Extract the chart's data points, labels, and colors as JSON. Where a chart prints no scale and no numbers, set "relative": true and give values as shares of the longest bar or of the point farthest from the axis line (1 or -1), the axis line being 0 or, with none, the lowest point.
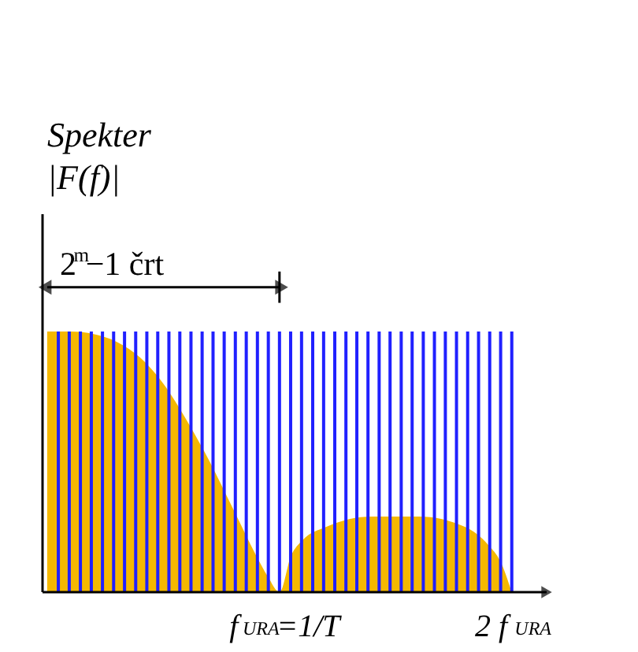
{
  "chart_data": {
    "type": "area",
    "title": "Spekter",
    "ylabel": "|F(f)|",
    "relative": true,
    "grid": false,
    "legend": false,
    "annotations": [
      "2$^{m}$−1 črt"
    ],
    "xlim": [
      -0.02,
      2.15
    ],
    "xticks": [
      {
        "value": 1,
        "label": "f$_{URA}$=1/T"
      },
      {
        "value": 2,
        "label": "2 f$_{URA}$"
      }
    ],
    "series": [
      {
        "color": "#f5b800",
        "x": [
          0,
          0.1,
          0.2,
          0.3,
          0.4,
          0.5,
          0.6,
          0.7,
          0.8,
          0.9,
          0.95,
          1.0,
          1.05,
          1.1,
          1.2,
          1.4,
          1.6,
          1.8,
          1.9,
          1.95,
          2.0
        ],
        "values": [
          1,
          1,
          0.99,
          0.96,
          0.9,
          0.8,
          0.66,
          0.5,
          0.32,
          0.14,
          0.06,
          0,
          0.14,
          0.2,
          0.25,
          0.29,
          0.29,
          0.25,
          0.18,
          0.12,
          0
        ]
      },
      {
        "type": "bar",
        "color": "#2020ff",
        "x": [
          0.048,
          0.095,
          0.143,
          0.19,
          0.238,
          0.286,
          0.333,
          0.381,
          0.429,
          0.476,
          0.524,
          0.571,
          0.619,
          0.667,
          0.714,
          0.762,
          0.81,
          0.857,
          0.905,
          0.952,
          1.0,
          1.048,
          1.095,
          1.143,
          1.19,
          1.238,
          1.286,
          1.333,
          1.381,
          1.429,
          1.476,
          1.524,
          1.571,
          1.619,
          1.667,
          1.714,
          1.762,
          1.81,
          1.857,
          1.905,
          1.952,
          2.0
        ],
        "values": [
          1,
          1,
          1,
          1,
          1,
          1,
          1,
          1,
          1,
          1,
          1,
          1,
          1,
          1,
          1,
          1,
          1,
          1,
          1,
          1,
          1,
          1,
          1,
          1,
          1,
          1,
          1,
          1,
          1,
          1,
          1,
          1,
          1,
          1,
          1,
          1,
          1,
          1,
          1,
          1,
          1,
          1
        ]
      }
    ]
  }
}
